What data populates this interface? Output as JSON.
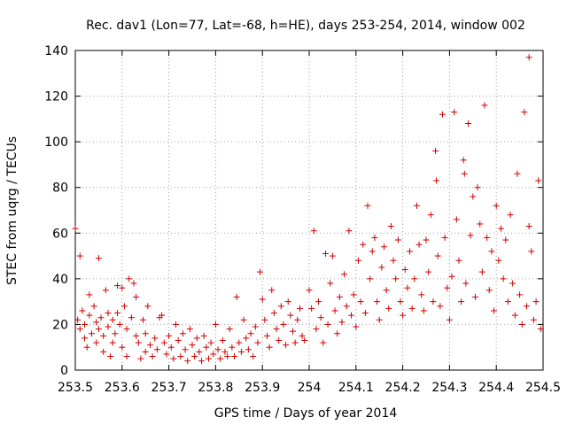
{
  "chart_data": {
    "type": "scatter",
    "title": "Rec. dav1 (Lon=77, Lat=-68, h=HE), days 253-254, 2014, window 002",
    "xlabel": "GPS time / Days of year 2014",
    "ylabel": "STEC from uqrg / TECUs",
    "xlim": [
      253.5,
      254.5
    ],
    "ylim": [
      0,
      140
    ],
    "xticks": [
      "253.5",
      "253.6",
      "253.7",
      "253.8",
      "253.9",
      "254",
      "254.1",
      "254.2",
      "254.3",
      "254.4",
      "254.5"
    ],
    "yticks": [
      "0",
      "20",
      "40",
      "60",
      "80",
      "100",
      "120",
      "140"
    ],
    "grid": true,
    "legend": "none",
    "marker": "plus",
    "color": "#cc0000",
    "series": [
      {
        "points": [
          [
            253.5,
            62
          ],
          [
            253.51,
            50
          ],
          [
            253.505,
            22
          ],
          [
            253.51,
            18
          ],
          [
            253.52,
            14
          ],
          [
            253.515,
            26
          ],
          [
            253.52,
            20
          ],
          [
            253.525,
            10
          ],
          [
            253.53,
            33
          ],
          [
            253.53,
            24
          ],
          [
            253.535,
            16
          ],
          [
            253.54,
            28
          ],
          [
            253.545,
            21
          ],
          [
            253.545,
            12
          ],
          [
            253.55,
            49
          ],
          [
            253.55,
            18
          ],
          [
            253.555,
            23
          ],
          [
            253.56,
            8
          ],
          [
            253.56,
            15
          ],
          [
            253.565,
            35
          ],
          [
            253.57,
            25
          ],
          [
            253.57,
            19
          ],
          [
            253.575,
            6
          ],
          [
            253.58,
            22
          ],
          [
            253.58,
            12
          ],
          [
            253.585,
            16
          ],
          [
            253.59,
            25
          ],
          [
            253.59,
            37
          ],
          [
            253.595,
            20
          ],
          [
            253.6,
            36
          ],
          [
            253.6,
            10
          ],
          [
            253.605,
            28
          ],
          [
            253.61,
            18
          ],
          [
            253.61,
            6
          ],
          [
            253.615,
            40
          ],
          [
            253.62,
            23
          ],
          [
            253.625,
            38
          ],
          [
            253.63,
            15
          ],
          [
            253.63,
            32
          ],
          [
            253.635,
            12
          ],
          [
            253.64,
            5
          ],
          [
            253.645,
            22
          ],
          [
            253.65,
            16
          ],
          [
            253.65,
            8
          ],
          [
            253.655,
            28
          ],
          [
            253.66,
            11
          ],
          [
            253.665,
            6
          ],
          [
            253.67,
            14
          ],
          [
            253.675,
            9
          ],
          [
            253.68,
            23
          ],
          [
            253.685,
            24
          ],
          [
            253.69,
            12
          ],
          [
            253.695,
            7
          ],
          [
            253.7,
            15
          ],
          [
            253.705,
            10
          ],
          [
            253.71,
            5
          ],
          [
            253.715,
            20
          ],
          [
            253.72,
            13
          ],
          [
            253.725,
            6
          ],
          [
            253.73,
            16
          ],
          [
            253.735,
            9
          ],
          [
            253.74,
            4
          ],
          [
            253.745,
            18
          ],
          [
            253.75,
            11
          ],
          [
            253.755,
            6
          ],
          [
            253.76,
            14
          ],
          [
            253.765,
            8
          ],
          [
            253.77,
            4
          ],
          [
            253.775,
            15
          ],
          [
            253.78,
            10
          ],
          [
            253.785,
            5
          ],
          [
            253.79,
            12
          ],
          [
            253.795,
            7
          ],
          [
            253.8,
            20
          ],
          [
            253.805,
            9
          ],
          [
            253.81,
            5
          ],
          [
            253.815,
            13
          ],
          [
            253.82,
            8
          ],
          [
            253.825,
            6
          ],
          [
            253.83,
            18
          ],
          [
            253.835,
            10
          ],
          [
            253.84,
            6
          ],
          [
            253.845,
            32
          ],
          [
            253.85,
            12
          ],
          [
            253.855,
            8
          ],
          [
            253.86,
            22
          ],
          [
            253.865,
            14
          ],
          [
            253.87,
            9
          ],
          [
            253.875,
            16
          ],
          [
            253.88,
            6
          ],
          [
            253.885,
            19
          ],
          [
            253.89,
            12
          ],
          [
            253.895,
            43
          ],
          [
            253.9,
            31
          ],
          [
            253.905,
            22
          ],
          [
            253.91,
            15
          ],
          [
            253.915,
            10
          ],
          [
            253.92,
            35
          ],
          [
            253.925,
            25
          ],
          [
            253.93,
            18
          ],
          [
            253.935,
            13
          ],
          [
            253.94,
            28
          ],
          [
            253.945,
            20
          ],
          [
            253.95,
            11
          ],
          [
            253.955,
            30
          ],
          [
            253.96,
            24
          ],
          [
            253.965,
            17
          ],
          [
            253.97,
            12
          ],
          [
            253.975,
            22
          ],
          [
            253.98,
            27
          ],
          [
            253.985,
            15
          ],
          [
            253.99,
            13
          ],
          [
            254.0,
            35
          ],
          [
            254.005,
            27
          ],
          [
            254.01,
            61
          ],
          [
            254.015,
            18
          ],
          [
            254.02,
            30
          ],
          [
            254.025,
            23
          ],
          [
            254.03,
            12
          ],
          [
            254.035,
            51
          ],
          [
            254.04,
            20
          ],
          [
            254.045,
            38
          ],
          [
            254.05,
            50
          ],
          [
            254.055,
            26
          ],
          [
            254.06,
            16
          ],
          [
            254.065,
            32
          ],
          [
            254.07,
            21
          ],
          [
            254.075,
            42
          ],
          [
            254.08,
            28
          ],
          [
            254.085,
            61
          ],
          [
            254.09,
            24
          ],
          [
            254.095,
            33
          ],
          [
            254.1,
            19
          ],
          [
            254.105,
            48
          ],
          [
            254.11,
            30
          ],
          [
            254.115,
            55
          ],
          [
            254.12,
            25
          ],
          [
            254.125,
            72
          ],
          [
            254.13,
            40
          ],
          [
            254.135,
            52
          ],
          [
            254.14,
            58
          ],
          [
            254.145,
            30
          ],
          [
            254.15,
            22
          ],
          [
            254.155,
            45
          ],
          [
            254.16,
            54
          ],
          [
            254.165,
            35
          ],
          [
            254.17,
            27
          ],
          [
            254.175,
            63
          ],
          [
            254.18,
            48
          ],
          [
            254.185,
            40
          ],
          [
            254.19,
            57
          ],
          [
            254.195,
            30
          ],
          [
            254.2,
            24
          ],
          [
            254.205,
            44
          ],
          [
            254.21,
            36
          ],
          [
            254.215,
            52
          ],
          [
            254.22,
            27
          ],
          [
            254.225,
            40
          ],
          [
            254.23,
            72
          ],
          [
            254.235,
            55
          ],
          [
            254.24,
            33
          ],
          [
            254.245,
            26
          ],
          [
            254.25,
            57
          ],
          [
            254.255,
            43
          ],
          [
            254.26,
            68
          ],
          [
            254.265,
            30
          ],
          [
            254.27,
            96
          ],
          [
            254.272,
            83
          ],
          [
            254.275,
            50
          ],
          [
            254.28,
            28
          ],
          [
            254.285,
            112
          ],
          [
            254.29,
            58
          ],
          [
            254.295,
            36
          ],
          [
            254.3,
            22
          ],
          [
            254.305,
            41
          ],
          [
            254.31,
            113
          ],
          [
            254.315,
            66
          ],
          [
            254.32,
            48
          ],
          [
            254.325,
            30
          ],
          [
            254.33,
            92
          ],
          [
            254.332,
            86
          ],
          [
            254.335,
            38
          ],
          [
            254.34,
            108
          ],
          [
            254.345,
            59
          ],
          [
            254.35,
            76
          ],
          [
            254.355,
            32
          ],
          [
            254.36,
            80
          ],
          [
            254.365,
            64
          ],
          [
            254.37,
            43
          ],
          [
            254.375,
            116
          ],
          [
            254.38,
            58
          ],
          [
            254.385,
            35
          ],
          [
            254.39,
            52
          ],
          [
            254.395,
            26
          ],
          [
            254.4,
            72
          ],
          [
            254.405,
            48
          ],
          [
            254.41,
            62
          ],
          [
            254.415,
            40
          ],
          [
            254.42,
            57
          ],
          [
            254.425,
            30
          ],
          [
            254.43,
            68
          ],
          [
            254.435,
            38
          ],
          [
            254.44,
            24
          ],
          [
            254.445,
            86
          ],
          [
            254.45,
            33
          ],
          [
            254.455,
            20
          ],
          [
            254.46,
            113
          ],
          [
            254.465,
            28
          ],
          [
            254.47,
            137
          ],
          [
            254.47,
            63
          ],
          [
            254.475,
            52
          ],
          [
            254.48,
            22
          ],
          [
            254.485,
            30
          ],
          [
            254.49,
            83
          ],
          [
            254.495,
            18
          ]
        ]
      }
    ]
  }
}
